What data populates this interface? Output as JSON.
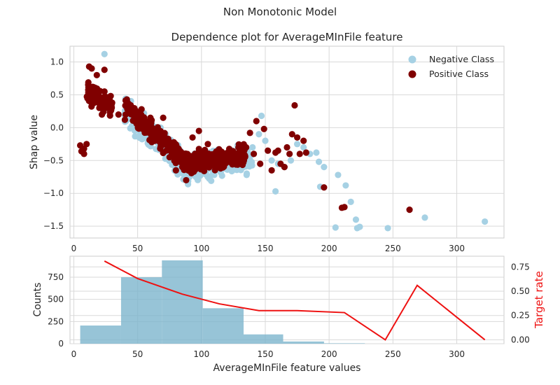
{
  "suptitle": "Non Monotonic Model",
  "chart_data": [
    {
      "type": "scatter",
      "title": "Dependence plot for AverageMInFile feature",
      "xlabel": "",
      "ylabel": "Shap value",
      "xlim": [
        -3,
        337
      ],
      "ylim": [
        -1.68,
        1.24
      ],
      "xticks": [
        0,
        50,
        100,
        150,
        200,
        250,
        300
      ],
      "yticks": [
        -1.5,
        -1.0,
        -0.5,
        0.0,
        0.5,
        1.0
      ],
      "ytick_labels": [
        "−1.5",
        "−1.0",
        "−0.5",
        "0.0",
        "0.5",
        "1.0"
      ],
      "grid": true,
      "legend_position": "top-right",
      "colors": {
        "negative": "#a6d1e4",
        "positive": "#800000"
      },
      "series": [
        {
          "name": "Negative Class",
          "points": [
            [
              24,
              1.12
            ],
            [
              42,
              0.3
            ],
            [
              55,
              0.22
            ],
            [
              60,
              0.1
            ],
            [
              68,
              0.0
            ],
            [
              72,
              -0.1
            ],
            [
              78,
              -0.3
            ],
            [
              85,
              -0.45
            ],
            [
              90,
              -0.6
            ],
            [
              95,
              -0.7
            ],
            [
              100,
              -0.65
            ],
            [
              105,
              -0.75
            ],
            [
              110,
              -0.72
            ],
            [
              115,
              -0.68
            ],
            [
              120,
              -0.5
            ],
            [
              125,
              -0.6
            ],
            [
              130,
              -0.45
            ],
            [
              135,
              -0.35
            ],
            [
              140,
              -0.3
            ],
            [
              145,
              -0.1
            ],
            [
              147,
              0.18
            ],
            [
              150,
              -0.2
            ],
            [
              155,
              -0.5
            ],
            [
              158,
              -0.97
            ],
            [
              160,
              -0.55
            ],
            [
              165,
              -0.6
            ],
            [
              170,
              -0.5
            ],
            [
              175,
              -0.25
            ],
            [
              180,
              -0.3
            ],
            [
              185,
              -0.4
            ],
            [
              190,
              -0.38
            ],
            [
              192,
              -0.52
            ],
            [
              196,
              -0.6
            ],
            [
              193,
              -0.9
            ],
            [
              207,
              -0.72
            ],
            [
              213,
              -0.88
            ],
            [
              217,
              -1.13
            ],
            [
              221,
              -1.4
            ],
            [
              222,
              -1.53
            ],
            [
              224,
              -1.51
            ],
            [
              205,
              -1.52
            ],
            [
              246,
              -1.53
            ],
            [
              275,
              -1.37
            ],
            [
              322,
              -1.43
            ]
          ]
        },
        {
          "name": "Positive Class",
          "points": [
            [
              5,
              -0.27
            ],
            [
              6,
              -0.36
            ],
            [
              8,
              -0.32
            ],
            [
              8,
              -0.4
            ],
            [
              10,
              -0.25
            ],
            [
              12,
              0.93
            ],
            [
              14,
              0.9
            ],
            [
              15,
              0.6
            ],
            [
              16,
              0.5
            ],
            [
              18,
              0.8
            ],
            [
              20,
              0.3
            ],
            [
              22,
              0.2
            ],
            [
              24,
              0.55
            ],
            [
              24,
              0.88
            ],
            [
              27,
              0.45
            ],
            [
              30,
              0.38
            ],
            [
              35,
              0.2
            ],
            [
              40,
              0.12
            ],
            [
              45,
              0.25
            ],
            [
              50,
              0.05
            ],
            [
              55,
              0.1
            ],
            [
              60,
              0.15
            ],
            [
              63,
              -0.05
            ],
            [
              66,
              -0.2
            ],
            [
              70,
              0.15
            ],
            [
              75,
              -0.45
            ],
            [
              80,
              -0.65
            ],
            [
              85,
              -0.6
            ],
            [
              88,
              -0.8
            ],
            [
              93,
              -0.15
            ],
            [
              98,
              -0.05
            ],
            [
              100,
              -0.55
            ],
            [
              105,
              -0.25
            ],
            [
              110,
              -0.4
            ],
            [
              115,
              -0.62
            ],
            [
              120,
              -0.45
            ],
            [
              125,
              -0.55
            ],
            [
              130,
              -0.35
            ],
            [
              135,
              -0.3
            ],
            [
              138,
              -0.08
            ],
            [
              141,
              -0.4
            ],
            [
              143,
              0.1
            ],
            [
              146,
              -0.55
            ],
            [
              149,
              -0.02
            ],
            [
              152,
              -0.35
            ],
            [
              155,
              -0.65
            ],
            [
              158,
              -0.38
            ],
            [
              160,
              -0.35
            ],
            [
              162,
              -0.55
            ],
            [
              165,
              -0.6
            ],
            [
              167,
              -0.3
            ],
            [
              169,
              -0.4
            ],
            [
              171,
              -0.1
            ],
            [
              173,
              0.34
            ],
            [
              175,
              -0.15
            ],
            [
              177,
              -0.4
            ],
            [
              180,
              -0.2
            ],
            [
              182,
              -0.38
            ],
            [
              196,
              -0.91
            ],
            [
              210,
              -1.22
            ],
            [
              212,
              -1.21
            ],
            [
              263,
              -1.25
            ]
          ]
        }
      ],
      "main_cloud": {
        "negative": {
          "x_range": [
            40,
            140
          ],
          "center": -0.35,
          "spread": 0.28,
          "count": 340
        },
        "positive": {
          "x_range": [
            40,
            135
          ],
          "center": -0.28,
          "spread": 0.22,
          "count": 420
        }
      },
      "pos_spike": {
        "x_range": [
          10,
          30
        ],
        "center": 0.55,
        "spread": 0.22,
        "count": 100
      }
    },
    {
      "type": "bar",
      "xlabel": "AverageMInFile feature values",
      "ylabel": "Counts",
      "y2label": "Target rate",
      "xlim": [
        -3,
        337
      ],
      "ylim": [
        0,
        987
      ],
      "y2lim": [
        -0.04,
        0.86
      ],
      "xticks": [
        0,
        50,
        100,
        150,
        200,
        250,
        300
      ],
      "yticks": [
        0,
        250,
        500,
        750
      ],
      "y2ticks": [
        0.0,
        0.25,
        0.5,
        0.75
      ],
      "y2tick_labels": [
        "0.00",
        "0.25",
        "0.50",
        "0.75"
      ],
      "grid": true,
      "colors": {
        "bars": "#7ab3cc",
        "line": "#ee1111",
        "y2label": "#ee1111"
      },
      "histogram": {
        "bin_edges": [
          5,
          37,
          69,
          101,
          133,
          164,
          196,
          228
        ],
        "counts": [
          205,
          750,
          940,
          400,
          105,
          25,
          5
        ]
      },
      "target_rate": {
        "x": [
          24,
          50,
          85,
          114,
          145,
          175,
          212,
          244,
          269,
          322
        ],
        "y": [
          0.81,
          0.63,
          0.47,
          0.37,
          0.3,
          0.3,
          0.28,
          0.0,
          0.56,
          0.0
        ]
      }
    }
  ]
}
